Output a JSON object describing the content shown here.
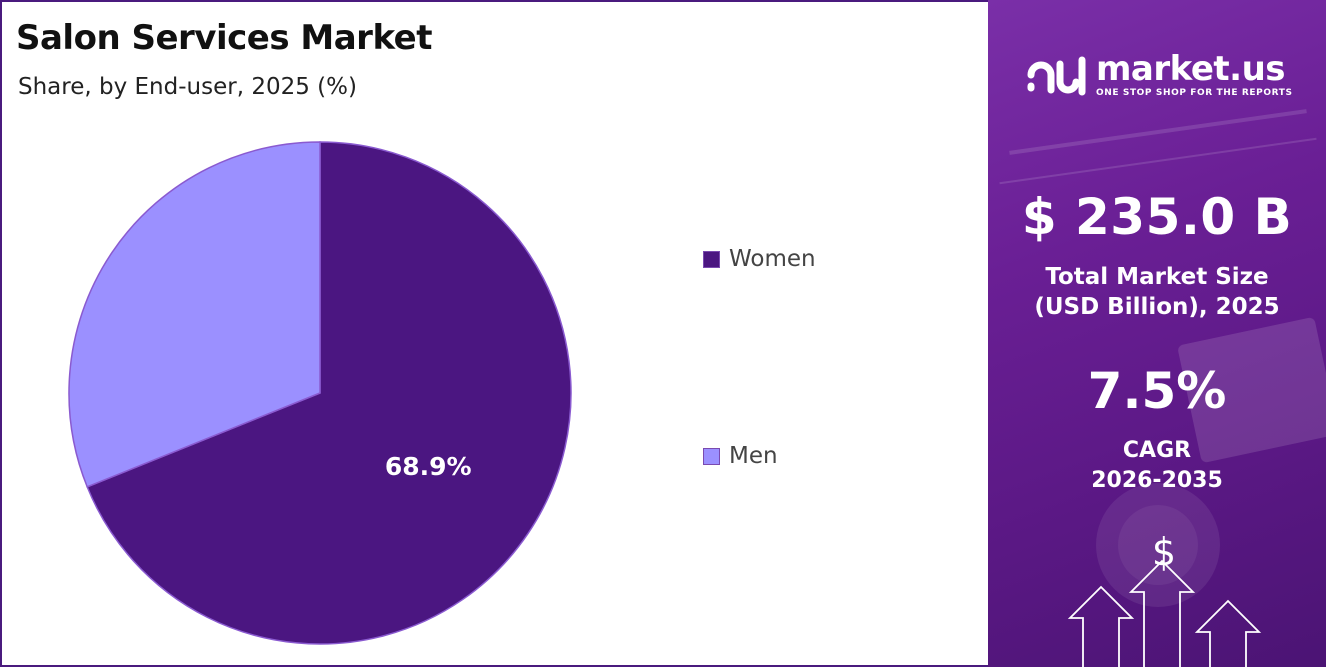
{
  "title": "Salon Services Market",
  "subtitle": "Share, by End-user, 2025 (%)",
  "chart_data": {
    "type": "pie",
    "categories": [
      "Women",
      "Men"
    ],
    "values": [
      68.9,
      31.1
    ],
    "data_labels": [
      "68.9%",
      ""
    ],
    "legend_position": "right",
    "colors": [
      "#4b1681",
      "#9b90ff"
    ]
  },
  "side_panel": {
    "brand_name": "market.us",
    "brand_tagline": "ONE STOP SHOP FOR THE REPORTS",
    "market_size_value": "$ 235.0 B",
    "market_size_label_line1": "Total Market Size",
    "market_size_label_line2": "(USD Billion), 2025",
    "cagr_value": "7.5%",
    "cagr_label_line1": "CAGR",
    "cagr_label_line2": "2026-2035",
    "currency_symbol": "$",
    "colors": {
      "panel_start": "#7a2fa8",
      "panel_end": "#4b1474"
    },
    "icons": [
      "market-us-logo-icon",
      "dollar-icon",
      "growth-arrows-icon"
    ]
  }
}
